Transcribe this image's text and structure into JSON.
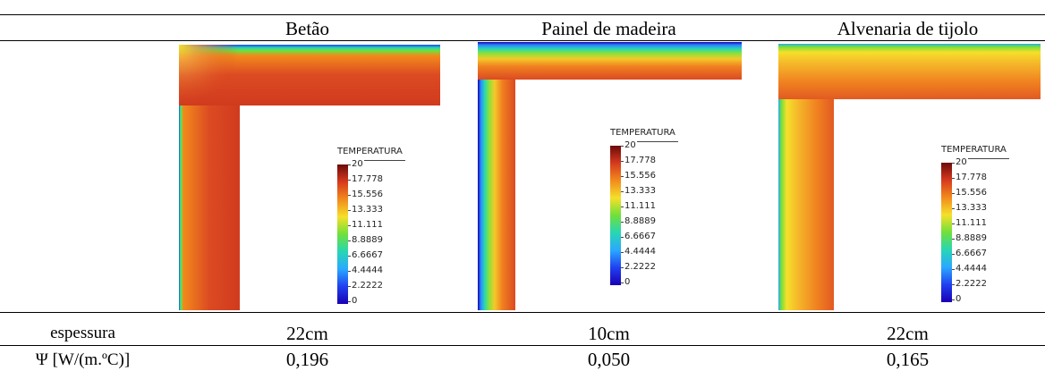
{
  "columns": [
    {
      "name": "Betão",
      "thickness": "22cm",
      "psi": "0,196"
    },
    {
      "name": "Painel de madeira",
      "thickness": "10cm",
      "psi": "0,050"
    },
    {
      "name": "Alvenaria de tijolo",
      "thickness": "22cm",
      "psi": "0,165"
    }
  ],
  "row_labels": {
    "thickness": "espessura",
    "psi": "Ψ [W/(m.ºC)]"
  },
  "legend": {
    "title": "TEMPERATURA",
    "ticks": [
      "20",
      "17.778",
      "15.556",
      "13.333",
      "11.111",
      "8.8889",
      "6.6667",
      "4.4444",
      "2.2222",
      "0"
    ]
  },
  "colors": {
    "scale": [
      "#6b0a0a",
      "#d63a1e",
      "#f28a1c",
      "#f5e02a",
      "#6fe03a",
      "#27d6b5",
      "#2aa8ff",
      "#2040f0",
      "#1a00b4"
    ]
  }
}
